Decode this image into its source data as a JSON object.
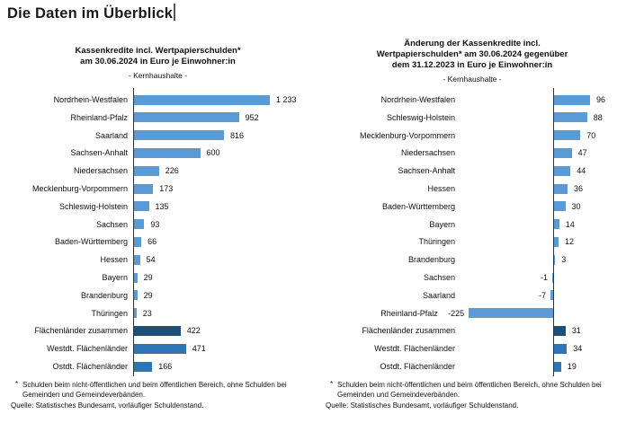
{
  "page": {
    "title": "Die Daten im Überblick"
  },
  "colors": {
    "bar_normal": "#5B9BD5",
    "bar_dark": "#1F4E79",
    "bar_medium": "#2E75B6",
    "axis": "#333333"
  },
  "footnote": {
    "star": "*",
    "text": "Schulden beim nicht-öffentlichen und beim öffentlichen Bereich, ohne Schulden bei Gemeinden und Gemeindeverbänden.",
    "source": "Quelle: Statistisches Bundesamt, vorläufiger Schuldenstand."
  },
  "chart_data": [
    {
      "type": "bar",
      "orientation": "horizontal",
      "title": "Kassenkredite incl. Wertpapierschulden* am 30.06.2024 in Euro je Einwohner:in",
      "title_lines": [
        "Kassenkredite incl. Wertpapierschulden*",
        "am 30.06.2024 in Euro je Einwohner:in"
      ],
      "subtitle": "- Kernhaushalte -",
      "xlim": [
        0,
        1300
      ],
      "grid": false,
      "legend": false,
      "categories": [
        "Nordrhein-Westfalen",
        "Rheinland-Pfalz",
        "Saarland",
        "Sachsen-Anhalt",
        "Niedersachsen",
        "Mecklenburg-Vorpommern",
        "Schleswig-Holstein",
        "Sachsen",
        "Baden-Württemberg",
        "Hessen",
        "Bayern",
        "Brandenburg",
        "Thüringen",
        "Flächenländer zusammen",
        "Westdt. Flächenländer",
        "Ostdt. Flächenländer"
      ],
      "values": [
        1233,
        952,
        816,
        600,
        226,
        173,
        135,
        93,
        66,
        54,
        29,
        29,
        23,
        422,
        471,
        166
      ],
      "value_labels": [
        "1 233",
        "952",
        "816",
        "600",
        "226",
        "173",
        "135",
        "93",
        "66",
        "54",
        "29",
        "29",
        "23",
        "422",
        "471",
        "166"
      ],
      "bar_styles": [
        "normal",
        "normal",
        "normal",
        "normal",
        "normal",
        "normal",
        "normal",
        "normal",
        "normal",
        "normal",
        "normal",
        "normal",
        "normal",
        "dark",
        "medium",
        "medium"
      ]
    },
    {
      "type": "bar",
      "orientation": "horizontal",
      "title": "Änderung der Kassenkredite incl. Wertpapierschulden* am 30.06.2024 gegenüber dem 31.12.2023 in Euro je Einwohner:in",
      "title_lines": [
        "Änderung der Kassenkredite incl.",
        "Wertpapierschulden* am 30.06.2024 gegenüber",
        "dem 31.12.2023 in Euro je Einwohner:in"
      ],
      "subtitle": "- Kernhaushalte -",
      "xlim": [
        -250,
        110
      ],
      "grid": false,
      "legend": false,
      "categories": [
        "Nordrhein-Westfalen",
        "Schleswig-Holstein",
        "Mecklenburg-Vorpommern",
        "Niedersachsen",
        "Sachsen-Anhalt",
        "Hessen",
        "Baden-Württemberg",
        "Bayern",
        "Thüringen",
        "Brandenburg",
        "Sachsen",
        "Saarland",
        "Rheinland-Pfalz",
        "Flächenländer zusammen",
        "Westdt. Flächenländer",
        "Ostdt. Flächenländer"
      ],
      "values": [
        96,
        88,
        70,
        47,
        44,
        36,
        30,
        14,
        12,
        3,
        -1,
        -7,
        -225,
        31,
        34,
        19
      ],
      "value_labels": [
        "96",
        "88",
        "70",
        "47",
        "44",
        "36",
        "30",
        "14",
        "12",
        "3",
        "-1",
        "-7",
        "-225",
        "31",
        "34",
        "19"
      ],
      "bar_styles": [
        "normal",
        "normal",
        "normal",
        "normal",
        "normal",
        "normal",
        "normal",
        "normal",
        "normal",
        "normal",
        "normal",
        "normal",
        "normal",
        "dark",
        "medium",
        "medium"
      ]
    }
  ]
}
